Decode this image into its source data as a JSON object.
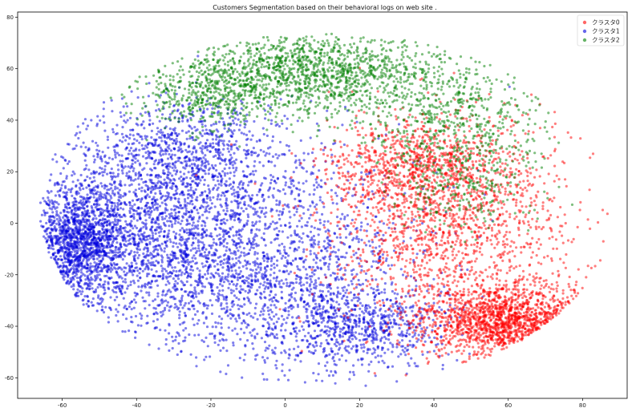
{
  "chart_data": {
    "type": "scatter",
    "title": "Customers Segmentation based on their behavioral logs on web site .",
    "xlabel": "",
    "ylabel": "",
    "xlim": [
      -72,
      92
    ],
    "ylim": [
      -68,
      82
    ],
    "x_ticks": [
      -60,
      -40,
      -20,
      0,
      20,
      40,
      60,
      80
    ],
    "y_ticks": [
      -60,
      -40,
      -20,
      0,
      20,
      40,
      60,
      80
    ],
    "grid": false,
    "legend_position": "top-right",
    "marker_opacity": 0.5,
    "series": [
      {
        "name": "クラスタ0",
        "color": "#ff0000",
        "clusters": [
          {
            "cx": 60,
            "cy": -38,
            "sx": 12,
            "sy": 7,
            "n": 1400
          },
          {
            "cx": 45,
            "cy": 0,
            "sx": 17,
            "sy": 20,
            "n": 1500
          },
          {
            "cx": 35,
            "cy": 22,
            "sx": 12,
            "sy": 9,
            "n": 700
          }
        ]
      },
      {
        "name": "クラスタ1",
        "color": "#0000dd",
        "clusters": [
          {
            "cx": -55,
            "cy": -7,
            "sx": 6,
            "sy": 11,
            "n": 1300
          },
          {
            "cx": -35,
            "cy": 0,
            "sx": 15,
            "sy": 22,
            "n": 1800
          },
          {
            "cx": -5,
            "cy": -15,
            "sx": 20,
            "sy": 22,
            "n": 1800
          },
          {
            "cx": 20,
            "cy": -40,
            "sx": 12,
            "sy": 8,
            "n": 700
          },
          {
            "cx": -25,
            "cy": 30,
            "sx": 14,
            "sy": 10,
            "n": 500
          }
        ]
      },
      {
        "name": "クラスタ2",
        "color": "#008000",
        "clusters": [
          {
            "cx": 5,
            "cy": 58,
            "sx": 20,
            "sy": 8,
            "n": 1500
          },
          {
            "cx": 45,
            "cy": 40,
            "sx": 12,
            "sy": 12,
            "n": 500
          },
          {
            "cx": -20,
            "cy": 48,
            "sx": 10,
            "sy": 6,
            "n": 300
          },
          {
            "cx": 50,
            "cy": 15,
            "sx": 10,
            "sy": 10,
            "n": 250
          }
        ]
      }
    ]
  }
}
